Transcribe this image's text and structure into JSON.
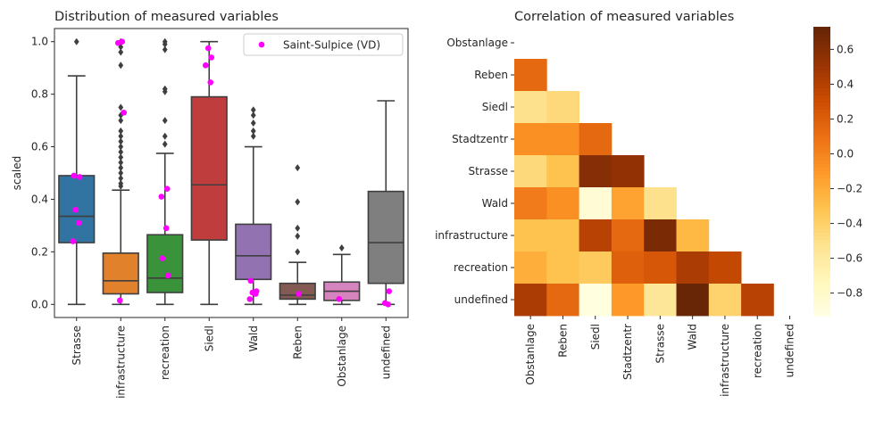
{
  "chart_data": [
    {
      "type": "box",
      "title": "Distribution of measured variables",
      "ylabel": "scaled",
      "xlabel": "",
      "ylim": [
        -0.05,
        1.05
      ],
      "yticks": [
        "0.0",
        "0.2",
        "0.4",
        "0.6",
        "0.8",
        "1.0"
      ],
      "categories": [
        "Strasse",
        "infrastructure",
        "recreation",
        "Siedl",
        "Wald",
        "Reben",
        "Obstanlage",
        "undefined"
      ],
      "colors": [
        "#3274a1",
        "#e1812c",
        "#3a923a",
        "#c03d3e",
        "#9372b2",
        "#845b53",
        "#d684bd",
        "#7f7f7f"
      ],
      "boxes": [
        {
          "whislo": 0.0,
          "q1": 0.235,
          "med": 0.335,
          "q3": 0.49,
          "whishi": 0.87,
          "fliers": [
            1.0
          ]
        },
        {
          "whislo": 0.0,
          "q1": 0.04,
          "med": 0.09,
          "q3": 0.195,
          "whishi": 0.435,
          "fliers": [
            0.45,
            0.46,
            0.48,
            0.5,
            0.52,
            0.54,
            0.56,
            0.58,
            0.6,
            0.62,
            0.64,
            0.66,
            0.7,
            0.72,
            0.75,
            0.91,
            0.96,
            0.98,
            1.0
          ]
        },
        {
          "whislo": 0.0,
          "q1": 0.045,
          "med": 0.1,
          "q3": 0.265,
          "whishi": 0.575,
          "fliers": [
            0.61,
            0.64,
            0.7,
            0.81,
            0.82,
            0.97,
            0.99,
            1.0
          ]
        },
        {
          "whislo": 0.0,
          "q1": 0.245,
          "med": 0.455,
          "q3": 0.79,
          "whishi": 1.0,
          "fliers": []
        },
        {
          "whislo": 0.0,
          "q1": 0.095,
          "med": 0.185,
          "q3": 0.305,
          "whishi": 0.6,
          "fliers": [
            0.64,
            0.66,
            0.69,
            0.72,
            0.74
          ]
        },
        {
          "whislo": 0.0,
          "q1": 0.02,
          "med": 0.035,
          "q3": 0.08,
          "whishi": 0.16,
          "fliers": [
            0.2,
            0.26,
            0.29,
            0.39,
            0.52
          ]
        },
        {
          "whislo": 0.0,
          "q1": 0.015,
          "med": 0.05,
          "q3": 0.085,
          "whishi": 0.19,
          "fliers": [
            0.215
          ]
        },
        {
          "whislo": 0.0,
          "q1": 0.08,
          "med": 0.235,
          "q3": 0.43,
          "whishi": 0.775,
          "fliers": []
        }
      ],
      "points_series": {
        "name": "Saint-Sulpice (VD)",
        "color": "#ff00ff",
        "points": [
          [
            0,
            0.49
          ],
          [
            0,
            0.485
          ],
          [
            0,
            0.36
          ],
          [
            0,
            0.31
          ],
          [
            0,
            0.24
          ],
          [
            1,
            1.0
          ],
          [
            1,
            0.995
          ],
          [
            1,
            0.73
          ],
          [
            1,
            0.015
          ],
          [
            2,
            0.44
          ],
          [
            2,
            0.41
          ],
          [
            2,
            0.29
          ],
          [
            2,
            0.175
          ],
          [
            2,
            0.11
          ],
          [
            3,
            0.975
          ],
          [
            3,
            0.94
          ],
          [
            3,
            0.91
          ],
          [
            3,
            0.845
          ],
          [
            4,
            0.09
          ],
          [
            4,
            0.05
          ],
          [
            4,
            0.045
          ],
          [
            4,
            0.04
          ],
          [
            4,
            0.02
          ],
          [
            5,
            0.04
          ],
          [
            6,
            0.02
          ],
          [
            7,
            0.05
          ],
          [
            7,
            0.005
          ],
          [
            7,
            0.0
          ]
        ]
      },
      "legend": "top-right"
    },
    {
      "type": "heatmap",
      "title": "Correlation of measured variables",
      "rows": [
        "Obstanlage",
        "Reben",
        "Siedl",
        "Stadtzentr",
        "Strasse",
        "Wald",
        "infrastructure",
        "recreation",
        "undefined"
      ],
      "cols": [
        "Obstanlage",
        "Reben",
        "Siedl",
        "Stadtzentr",
        "Strasse",
        "Wald",
        "infrastructure",
        "recreation",
        "undefined"
      ],
      "values": [
        [
          null,
          null,
          null,
          null,
          null,
          null,
          null,
          null,
          null
        ],
        [
          0.15,
          null,
          null,
          null,
          null,
          null,
          null,
          null,
          null
        ],
        [
          -0.5,
          -0.45,
          null,
          null,
          null,
          null,
          null,
          null,
          null
        ],
        [
          -0.05,
          -0.05,
          0.15,
          null,
          null,
          null,
          null,
          null,
          null
        ],
        [
          -0.45,
          -0.3,
          0.6,
          0.55,
          null,
          null,
          null,
          null,
          null
        ],
        [
          0.05,
          -0.05,
          -0.85,
          -0.15,
          -0.5,
          null,
          null,
          null,
          null
        ],
        [
          -0.3,
          -0.3,
          0.4,
          0.15,
          0.65,
          -0.25,
          null,
          null,
          null
        ],
        [
          -0.2,
          -0.3,
          -0.35,
          0.2,
          0.25,
          0.45,
          0.35,
          null,
          null
        ],
        [
          0.45,
          0.15,
          -0.9,
          -0.1,
          -0.55,
          0.72,
          -0.4,
          0.4,
          null
        ]
      ],
      "colorbar": {
        "min": -0.93,
        "max": 0.73,
        "ticks": [
          0.6,
          0.4,
          0.2,
          0.0,
          -0.2,
          -0.4,
          -0.6,
          -0.8
        ],
        "tick_labels": [
          "0.6",
          "0.4",
          "0.2",
          "0.0",
          "−0.2",
          "−0.4",
          "−0.6",
          "−0.8"
        ]
      },
      "colormap": "YlOrBr"
    }
  ]
}
